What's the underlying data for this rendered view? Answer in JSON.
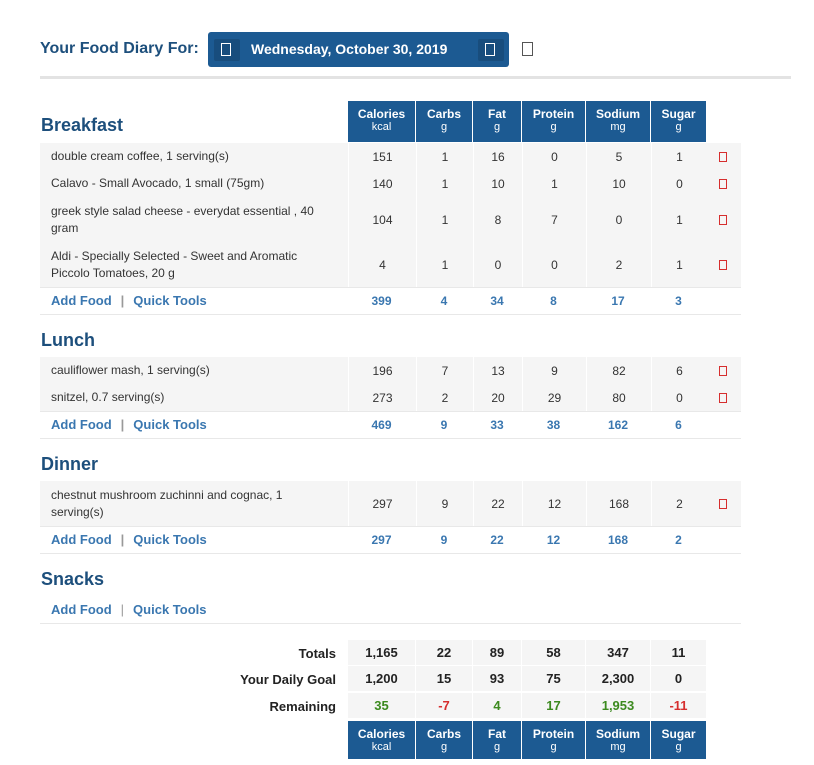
{
  "header": {
    "title": "Your Food Diary For:",
    "date": "Wednesday, October 30, 2019"
  },
  "columns": [
    {
      "label": "Calories",
      "unit": "kcal"
    },
    {
      "label": "Carbs",
      "unit": "g"
    },
    {
      "label": "Fat",
      "unit": "g"
    },
    {
      "label": "Protein",
      "unit": "g"
    },
    {
      "label": "Sodium",
      "unit": "mg"
    },
    {
      "label": "Sugar",
      "unit": "g"
    }
  ],
  "meals": {
    "breakfast": {
      "title": "Breakfast",
      "items": [
        {
          "name": "double cream coffee, 1 serving(s)",
          "values": [
            "151",
            "1",
            "16",
            "0",
            "5",
            "1"
          ]
        },
        {
          "name": "Calavo - Small Avocado, 1 small (75gm)",
          "values": [
            "140",
            "1",
            "10",
            "1",
            "10",
            "0"
          ]
        },
        {
          "name": "greek style salad cheese - everydat essential , 40 gram",
          "values": [
            "104",
            "1",
            "8",
            "7",
            "0",
            "1"
          ]
        },
        {
          "name": "Aldi - Specially Selected - Sweet and Aromatic Piccolo Tomatoes, 20 g",
          "values": [
            "4",
            "1",
            "0",
            "0",
            "2",
            "1"
          ]
        }
      ],
      "totals": [
        "399",
        "4",
        "34",
        "8",
        "17",
        "3"
      ]
    },
    "lunch": {
      "title": "Lunch",
      "items": [
        {
          "name": "cauliflower mash, 1 serving(s)",
          "values": [
            "196",
            "7",
            "13",
            "9",
            "82",
            "6"
          ]
        },
        {
          "name": "snitzel, 0.7 serving(s)",
          "values": [
            "273",
            "2",
            "20",
            "29",
            "80",
            "0"
          ]
        }
      ],
      "totals": [
        "469",
        "9",
        "33",
        "38",
        "162",
        "6"
      ]
    },
    "dinner": {
      "title": "Dinner",
      "items": [
        {
          "name": "chestnut mushroom zuchinni and cognac, 1 serving(s)",
          "values": [
            "297",
            "9",
            "22",
            "12",
            "168",
            "2"
          ]
        }
      ],
      "totals": [
        "297",
        "9",
        "22",
        "12",
        "168",
        "2"
      ]
    },
    "snacks": {
      "title": "Snacks"
    }
  },
  "links": {
    "add_food": "Add Food",
    "quick_tools": "Quick Tools",
    "separator": "|"
  },
  "summary": {
    "totals_label": "Totals",
    "totals": [
      "1,165",
      "22",
      "89",
      "58",
      "347",
      "11"
    ],
    "goal_label": "Your Daily Goal",
    "goal": [
      "1,200",
      "15",
      "93",
      "75",
      "2,300",
      "0"
    ],
    "remaining_label": "Remaining",
    "remaining": [
      "35",
      "-7",
      "4",
      "17",
      "1,953",
      "-11"
    ]
  },
  "colors": {
    "brand_blue": "#1c5a92",
    "link_blue": "#3a77b0",
    "positive": "#3c8a1f",
    "negative": "#d62e2e"
  },
  "icons": {
    "prev_day": "chevron-left-icon",
    "next_day": "chevron-right-icon",
    "calendar": "calendar-icon",
    "delete": "delete-icon"
  }
}
